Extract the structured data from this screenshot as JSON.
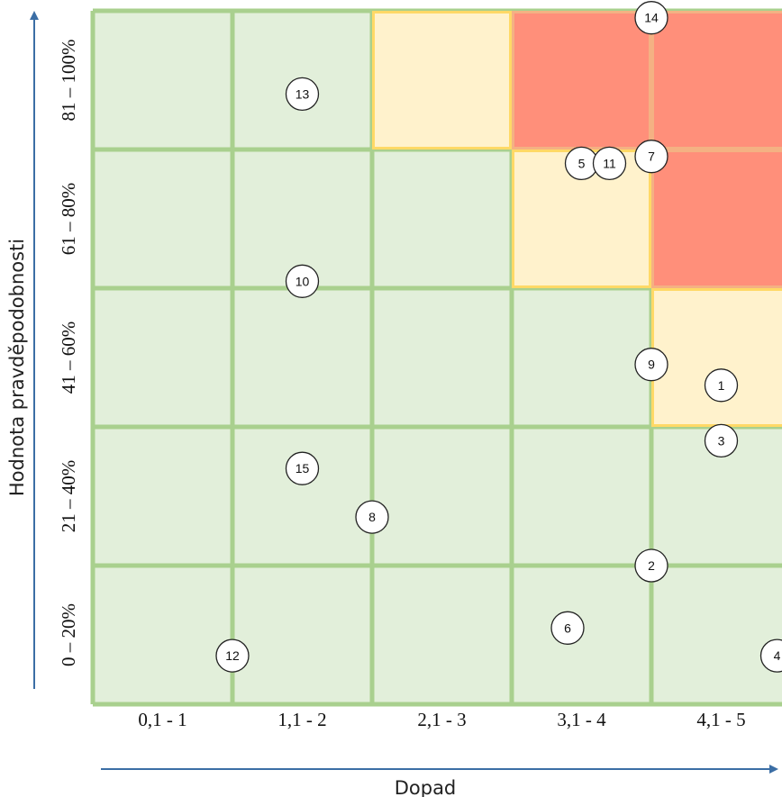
{
  "chart_data": {
    "type": "heatmap",
    "title": "",
    "xlabel": "Dopad",
    "ylabel": "Hodnota pravděpodobnosti",
    "x_categories": [
      "0,1 - 1",
      "1,1 - 2",
      "2,1 - 3",
      "3,1 - 4",
      "4,1 - 5"
    ],
    "y_categories": [
      "0 – 20%",
      "21 – 40%",
      "41 – 60%",
      "61 – 80%",
      "81 – 100%"
    ],
    "cell_levels": [
      [
        "low",
        "low",
        "low",
        "low",
        "low"
      ],
      [
        "low",
        "low",
        "low",
        "low",
        "low"
      ],
      [
        "low",
        "low",
        "low",
        "low",
        "medium"
      ],
      [
        "low",
        "low",
        "low",
        "medium",
        "high"
      ],
      [
        "low",
        "low",
        "medium",
        "high",
        "high"
      ]
    ],
    "level_colors": {
      "low": "#e2efda",
      "medium": "#fff2cc",
      "high": "#ff8f7a"
    },
    "border_colors": {
      "low": "#a9d08e",
      "medium": "#ffd966",
      "high": "#f4b183"
    },
    "points": [
      {
        "label": "1",
        "x": 4.5,
        "y": 0.46
      },
      {
        "label": "2",
        "x": 4.0,
        "y": 0.2
      },
      {
        "label": "3",
        "x": 4.5,
        "y": 0.38
      },
      {
        "label": "4",
        "x": 4.9,
        "y": 0.07
      },
      {
        "label": "5",
        "x": 3.5,
        "y": 0.78
      },
      {
        "label": "6",
        "x": 3.4,
        "y": 0.11
      },
      {
        "label": "7",
        "x": 4.0,
        "y": 0.79
      },
      {
        "label": "8",
        "x": 2.0,
        "y": 0.27
      },
      {
        "label": "9",
        "x": 4.0,
        "y": 0.49
      },
      {
        "label": "10",
        "x": 1.5,
        "y": 0.61
      },
      {
        "label": "11",
        "x": 3.7,
        "y": 0.78
      },
      {
        "label": "12",
        "x": 1.0,
        "y": 0.07
      },
      {
        "label": "13",
        "x": 1.5,
        "y": 0.88
      },
      {
        "label": "14",
        "x": 4.0,
        "y": 0.99
      },
      {
        "label": "15",
        "x": 1.5,
        "y": 0.34
      }
    ]
  }
}
